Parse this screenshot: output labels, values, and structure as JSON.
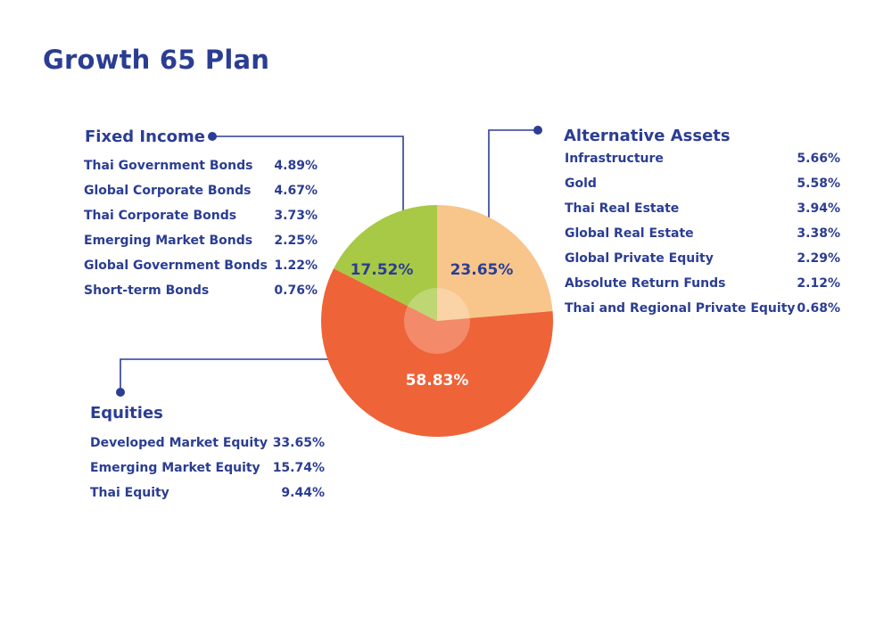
{
  "title": "Growth 65 Plan",
  "colors": {
    "text": "#2b3d93",
    "connector": "#2b3d93",
    "fixed_income": "#a8c945",
    "alternative_assets": "#f8c58a",
    "equities": "#ef6338",
    "center_highlight": "#ffffff"
  },
  "groups": {
    "fixed_income": {
      "title": "Fixed Income",
      "items": [
        {
          "label": "Thai Government Bonds",
          "value": "4.89%"
        },
        {
          "label": "Global Corporate Bonds",
          "value": "4.67%"
        },
        {
          "label": "Thai Corporate Bonds",
          "value": "3.73%"
        },
        {
          "label": "Emerging Market Bonds",
          "value": "2.25%"
        },
        {
          "label": "Global Government Bonds",
          "value": "1.22%"
        },
        {
          "label": "Short-term Bonds",
          "value": "0.76%"
        }
      ]
    },
    "alternative_assets": {
      "title": "Alternative Assets",
      "items": [
        {
          "label": "Infrastructure",
          "value": "5.66%"
        },
        {
          "label": "Gold",
          "value": "5.58%"
        },
        {
          "label": "Thai Real Estate",
          "value": "3.94%"
        },
        {
          "label": "Global Real Estate",
          "value": "3.38%"
        },
        {
          "label": "Global Private Equity",
          "value": "2.29%"
        },
        {
          "label": "Absolute Return Funds",
          "value": "2.12%"
        },
        {
          "label": "Thai and Regional Private Equity",
          "value": "0.68%"
        }
      ]
    },
    "equities": {
      "title": "Equities",
      "items": [
        {
          "label": "Developed Market Equity",
          "value": "33.65%"
        },
        {
          "label": "Emerging Market Equity",
          "value": "15.74%"
        },
        {
          "label": "Thai Equity",
          "value": "9.44%"
        }
      ]
    }
  },
  "chart_data": {
    "type": "pie",
    "title": "Growth 65 Plan",
    "start_angle_deg": 0,
    "direction": "clockwise",
    "center_highlight": true,
    "slices": [
      {
        "name": "Alternative Assets",
        "value": 23.65,
        "label": "23.65%",
        "color": "#f8c58a"
      },
      {
        "name": "Equities",
        "value": 58.83,
        "label": "58.83%",
        "color": "#ef6338"
      },
      {
        "name": "Fixed Income",
        "value": 17.52,
        "label": "17.52%",
        "color": "#a8c945"
      }
    ]
  }
}
